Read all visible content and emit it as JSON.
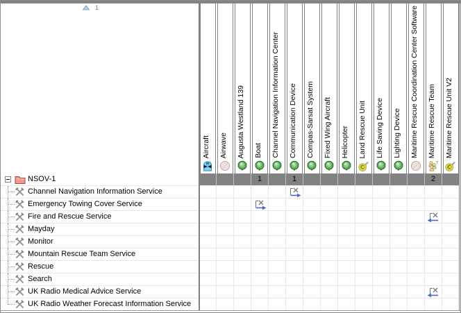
{
  "sort": {
    "indicator_number": "1"
  },
  "tree": {
    "root_label": "NSOV-1",
    "rows": [
      "Channel Navigation Information Service",
      "Emergency Towing Cover Service",
      "Fire and Rescue Service",
      "Mayday",
      "Monitor",
      "Mountain Rescue Team Service",
      "Rescue",
      "Search",
      "UK Radio Medical Advice Service",
      "UK Radio Weather Forecast Information Service"
    ]
  },
  "columns": [
    {
      "label": "Aircraft",
      "icon": "aircraft-icon",
      "count": ""
    },
    {
      "label": "Airwave",
      "icon": "disc-icon",
      "count": ""
    },
    {
      "label": "Augusta Westland 139",
      "icon": "resource-sphere-icon",
      "count": ""
    },
    {
      "label": "Boat",
      "icon": "resource-sphere-icon",
      "count": "1"
    },
    {
      "label": "Channel Navigation Information Center",
      "icon": "resource-sphere-icon",
      "count": ""
    },
    {
      "label": "Communication Device",
      "icon": "resource-sphere-icon",
      "count": "1"
    },
    {
      "label": "Compas-Sarsat System",
      "icon": "resource-sphere-icon",
      "count": ""
    },
    {
      "label": "Fixed Wing Aircraft",
      "icon": "resource-sphere-icon",
      "count": ""
    },
    {
      "label": "Helicopter",
      "icon": "resource-sphere-icon",
      "count": ""
    },
    {
      "label": "Land Rescue Unit",
      "icon": "copyright-tool-icon",
      "count": ""
    },
    {
      "label": "Life Saving Device",
      "icon": "resource-sphere-icon",
      "count": ""
    },
    {
      "label": "Lighting Device",
      "icon": "resource-sphere-icon",
      "count": ""
    },
    {
      "label": "Maritime Rescue Coordination Center Software",
      "icon": "disc-icon",
      "count": ""
    },
    {
      "label": "Maritime Rescue Team",
      "icon": "team-icon",
      "count": "2"
    },
    {
      "label": "Maritime Rescue Unit V2",
      "icon": "copyright-tool-icon",
      "count": ""
    }
  ],
  "relationships": [
    {
      "row": 0,
      "col": 5,
      "direction": "right"
    },
    {
      "row": 1,
      "col": 3,
      "direction": "right"
    },
    {
      "row": 2,
      "col": 13,
      "direction": "left"
    },
    {
      "row": 8,
      "col": 13,
      "direction": "left"
    }
  ],
  "colors": {
    "frame_gray": "#828282",
    "summary_row_bg": "#828282",
    "grid_line": "#e8e8e8",
    "arrow_blue": "#4a67c8",
    "sphere_green": "#5cab5c",
    "folder_pink": "#f2968e",
    "copyright_yellow": "#f1e94e"
  }
}
